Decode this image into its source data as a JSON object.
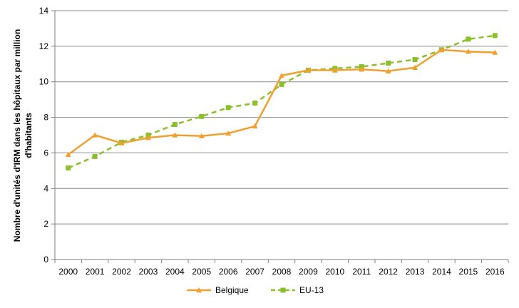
{
  "chart_data": {
    "type": "line",
    "title": "",
    "xlabel": "",
    "ylabel_lines": [
      "Nombre d'unités d'IRM dans les hôpitaux par million",
      "d'habitants"
    ],
    "categories": [
      "2000",
      "2001",
      "2002",
      "2003",
      "2004",
      "2005",
      "2006",
      "2007",
      "2008",
      "2009",
      "2010",
      "2011",
      "2012",
      "2013",
      "2014",
      "2015",
      "2016"
    ],
    "ylim": [
      0,
      14
    ],
    "yticks": [
      "0",
      "2",
      "4",
      "6",
      "8",
      "10",
      "12",
      "14"
    ],
    "grid": "horizontal",
    "legend_position": "bottom",
    "series": [
      {
        "name": "Belgique",
        "color": "#f0a030",
        "marker": "triangle",
        "line_style": "solid",
        "values": [
          5.9,
          7.0,
          6.55,
          6.85,
          7.0,
          6.95,
          7.1,
          7.5,
          10.35,
          10.65,
          10.65,
          10.7,
          10.6,
          10.8,
          11.8,
          11.7,
          11.65
        ]
      },
      {
        "name": "EU-13",
        "color": "#8cbf2c",
        "marker": "square",
        "line_style": "dashed",
        "values": [
          5.15,
          5.8,
          6.6,
          7.0,
          7.6,
          8.05,
          8.55,
          8.8,
          9.85,
          10.65,
          10.75,
          10.85,
          11.05,
          11.25,
          11.8,
          12.4,
          12.6
        ]
      }
    ]
  }
}
